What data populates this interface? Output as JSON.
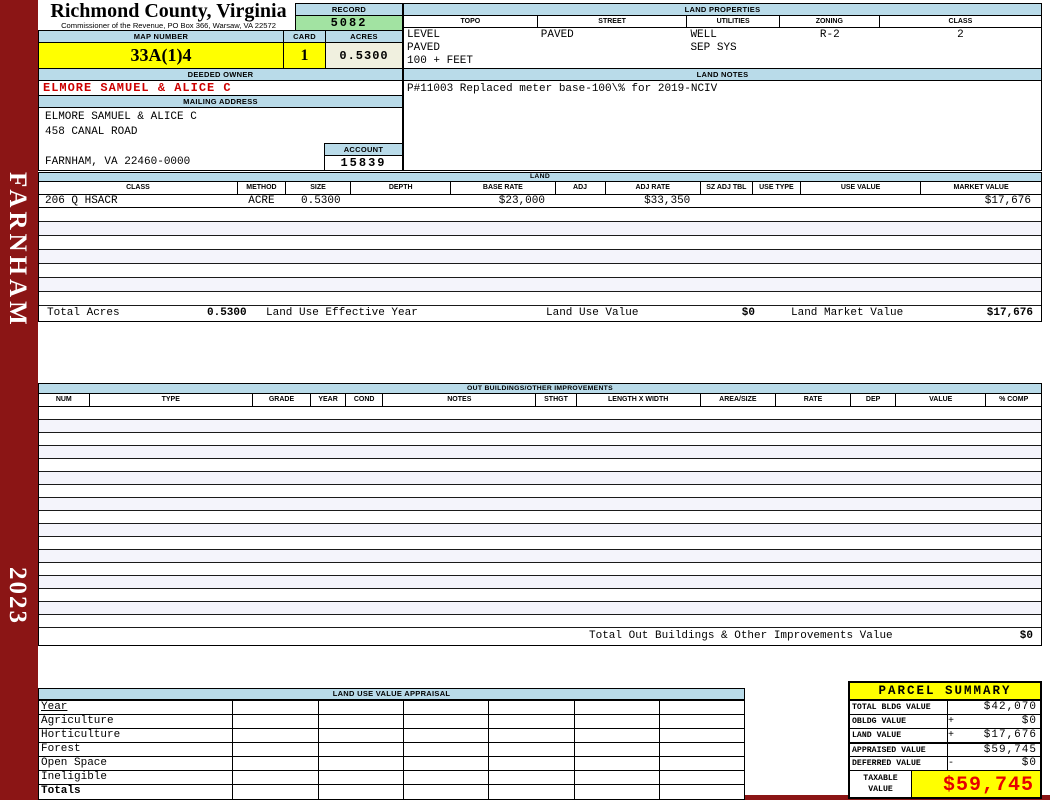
{
  "colors": {
    "maroon": "#8b1515",
    "bar-blue": "#b9dbe9",
    "rec-green": "#a2e3a2",
    "yellow": "#ffff00",
    "cream": "#f0f0df",
    "red": "#cc0000",
    "bigred": "#e60000"
  },
  "sidebar": {
    "district": "FARNHAM",
    "year": "2023"
  },
  "header": {
    "county": "Richmond County, Virginia",
    "commissioner": "Commissioner of the Revenue, PO Box 366, Warsaw, VA 22572"
  },
  "record": {
    "label": "RECORD",
    "value": "5082"
  },
  "map": {
    "label": "MAP NUMBER",
    "value": "33A(1)4"
  },
  "card": {
    "label": "CARD",
    "value": "1"
  },
  "acres": {
    "label": "ACRES",
    "value": "0.5300"
  },
  "land_properties": {
    "title": "LAND PROPERTIES",
    "columns": [
      "TOPO",
      "STREET",
      "UTILITIES",
      "ZONING",
      "CLASS"
    ],
    "topo": [
      "LEVEL",
      "PAVED",
      "100 + FEET"
    ],
    "street": [
      "PAVED"
    ],
    "utilities": [
      "WELL",
      "SEP SYS"
    ],
    "zoning": [
      "R-2"
    ],
    "class": [
      "2"
    ]
  },
  "owner": {
    "deeded_label": "DEEDED OWNER",
    "name": "ELMORE SAMUEL & ALICE C",
    "mailing_label": "MAILING ADDRESS",
    "address_lines": [
      "ELMORE SAMUEL & ALICE C",
      "458 CANAL ROAD",
      "",
      "FARNHAM, VA 22460-0000"
    ]
  },
  "account": {
    "label": "ACCOUNT",
    "value": "15839"
  },
  "land_notes": {
    "title": "LAND NOTES",
    "note": "P#11003 Replaced meter base-100\\% for 2019-NCIV"
  },
  "land": {
    "title": "LAND",
    "columns": [
      "CLASS",
      "METHOD",
      "SIZE",
      "DEPTH",
      "BASE RATE",
      "ADJ",
      "ADJ RATE",
      "SZ ADJ TBL",
      "USE TYPE",
      "USE VALUE",
      "MARKET VALUE"
    ],
    "rows": [
      [
        "206 Q HSACR",
        "ACRE",
        "0.5300",
        "",
        "$23,000",
        "",
        "$33,350",
        "",
        "",
        "",
        "$17,676"
      ]
    ],
    "empty_row_count": 7,
    "totals": {
      "total_acres_label": "Total Acres",
      "total_acres": "0.5300",
      "effective_year_label": "Land Use Effective Year",
      "use_value_label": "Land Use Value",
      "use_value": "$0",
      "market_value_label": "Land Market Value",
      "market_value": "$17,676"
    }
  },
  "out_buildings": {
    "title": "OUT BUILDINGS/OTHER IMPROVEMENTS",
    "columns": [
      "NUM",
      "TYPE",
      "GRADE",
      "YEAR",
      "COND",
      "NOTES",
      "STHGT",
      "LENGTH X WIDTH",
      "AREA/SIZE",
      "RATE",
      "DEP",
      "VALUE",
      "% COMP"
    ],
    "empty_row_count": 17,
    "total_label": "Total Out Buildings & Other Improvements Value",
    "total_value": "$0"
  },
  "land_use_appraisal": {
    "title": "LAND USE VALUE APPRAISAL",
    "row_labels": [
      "Year",
      "Agriculture",
      "Horticulture",
      "Forest",
      "Open Space",
      "Ineligible",
      "Totals"
    ],
    "data_column_count": 6
  },
  "parcel_summary": {
    "title": "PARCEL SUMMARY",
    "rows": [
      {
        "label": "TOTAL BLDG VALUE",
        "sign": "",
        "value": "$42,070"
      },
      {
        "label": "OBLDG VALUE",
        "sign": "+",
        "value": "$0"
      },
      {
        "label": "LAND VALUE",
        "sign": "+",
        "value": "$17,676"
      },
      {
        "label": "APPRAISED VALUE",
        "sign": "",
        "value": "$59,745"
      },
      {
        "label": "DEFERRED VALUE",
        "sign": "-",
        "value": "$0"
      }
    ],
    "taxable": {
      "label_lines": [
        "TAXABLE",
        "VALUE"
      ],
      "value": "$59,745"
    }
  }
}
